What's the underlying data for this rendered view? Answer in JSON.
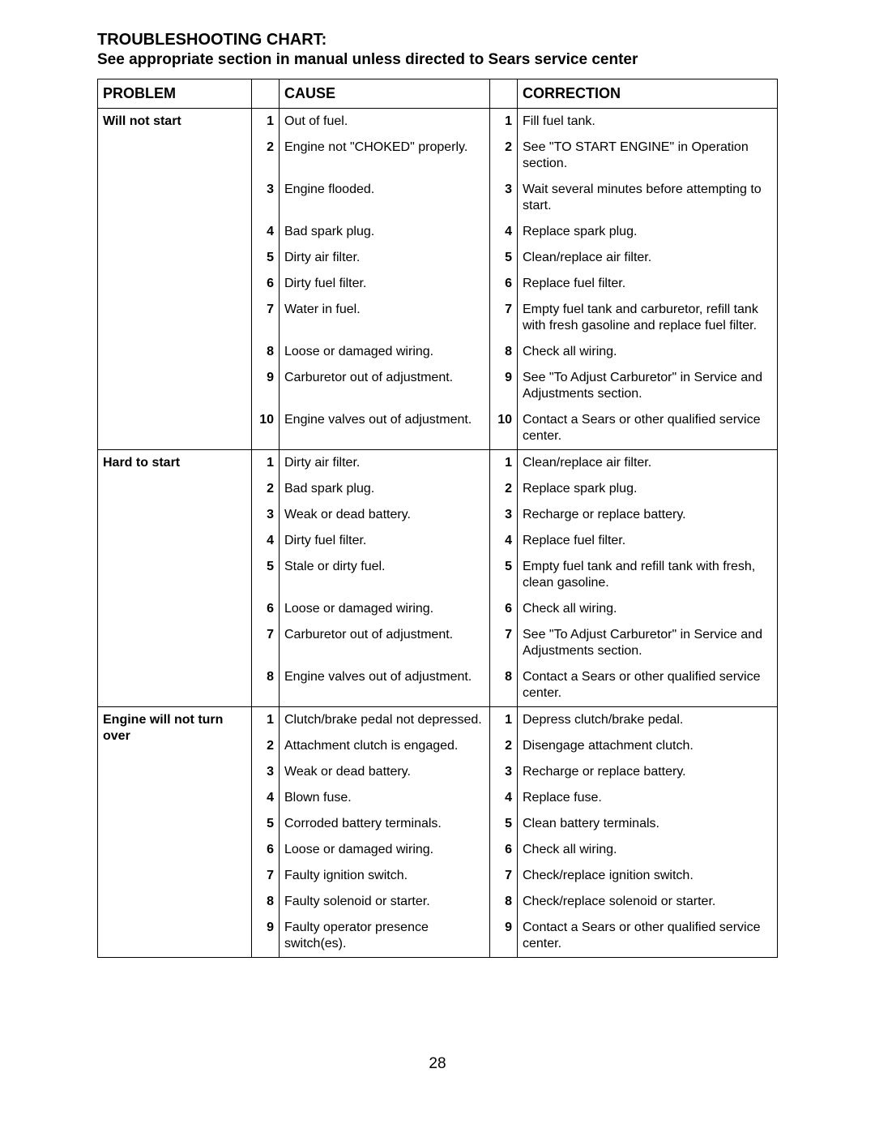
{
  "title": "TROUBLESHOOTING CHART:",
  "subtitle": "See appropriate section in manual unless directed to Sears service center",
  "pageNumber": "28",
  "headers": {
    "problem": "PROBLEM",
    "cause": "CAUSE",
    "correction": "CORRECTION"
  },
  "groups": [
    {
      "problem": "Will not start",
      "rows": [
        {
          "n": "1",
          "cause": "Out of fuel.",
          "correction": "Fill fuel tank."
        },
        {
          "n": "2",
          "cause": "Engine not \"CHOKED\" properly.",
          "correction": "See \"TO START ENGINE\" in Operation section."
        },
        {
          "n": "3",
          "cause": "Engine flooded.",
          "correction": "Wait several minutes before attempting to start."
        },
        {
          "n": "4",
          "cause": "Bad spark plug.",
          "correction": "Replace spark plug."
        },
        {
          "n": "5",
          "cause": "Dirty air filter.",
          "correction": "Clean/replace air filter."
        },
        {
          "n": "6",
          "cause": "Dirty fuel filter.",
          "correction": "Replace fuel filter."
        },
        {
          "n": "7",
          "cause": "Water in fuel.",
          "correction": "Empty fuel tank and carburetor, refill tank with fresh gasoline and replace fuel filter."
        },
        {
          "n": "8",
          "cause": "Loose or damaged wiring.",
          "correction": "Check all wiring."
        },
        {
          "n": "9",
          "cause": "Carburetor out of adjustment.",
          "correction": "See \"To Adjust Carburetor\" in Service and Adjustments section."
        },
        {
          "n": "10",
          "cause": "Engine valves out of adjustment.",
          "correction": "Contact a Sears or other qualified service center."
        }
      ]
    },
    {
      "problem": "Hard to start",
      "rows": [
        {
          "n": "1",
          "cause": "Dirty air filter.",
          "correction": "Clean/replace air filter."
        },
        {
          "n": "2",
          "cause": "Bad spark plug.",
          "correction": "Replace spark plug."
        },
        {
          "n": "3",
          "cause": "Weak or dead battery.",
          "correction": "Recharge or replace battery."
        },
        {
          "n": "4",
          "cause": "Dirty fuel filter.",
          "correction": "Replace fuel filter."
        },
        {
          "n": "5",
          "cause": "Stale or dirty fuel.",
          "correction": "Empty fuel tank and refill tank with fresh, clean gasoline."
        },
        {
          "n": "6",
          "cause": "Loose or damaged wiring.",
          "correction": "Check all wiring."
        },
        {
          "n": "7",
          "cause": "Carburetor out of adjustment.",
          "correction": "See \"To Adjust Carburetor\" in Service and Adjustments section."
        },
        {
          "n": "8",
          "cause": "Engine valves out of adjustment.",
          "correction": "Contact a Sears or other qualified service center."
        }
      ]
    },
    {
      "problem": "Engine will not turn over",
      "rows": [
        {
          "n": "1",
          "cause": "Clutch/brake pedal not depressed.",
          "correction": "Depress clutch/brake pedal."
        },
        {
          "n": "2",
          "cause": "Attachment clutch is engaged.",
          "correction": "Disengage attachment clutch."
        },
        {
          "n": "3",
          "cause": "Weak or dead battery.",
          "correction": "Recharge or replace battery."
        },
        {
          "n": "4",
          "cause": "Blown fuse.",
          "correction": "Replace fuse."
        },
        {
          "n": "5",
          "cause": "Corroded battery terminals.",
          "correction": "Clean battery terminals."
        },
        {
          "n": "6",
          "cause": "Loose or damaged wiring.",
          "correction": "Check all wiring."
        },
        {
          "n": "7",
          "cause": "Faulty ignition switch.",
          "correction": "Check/replace ignition switch."
        },
        {
          "n": "8",
          "cause": "Faulty solenoid or starter.",
          "correction": "Check/replace solenoid or starter."
        },
        {
          "n": "9",
          "cause": "Faulty operator presence switch(es).",
          "correction": "Contact a Sears or other qualified service center."
        }
      ]
    }
  ]
}
